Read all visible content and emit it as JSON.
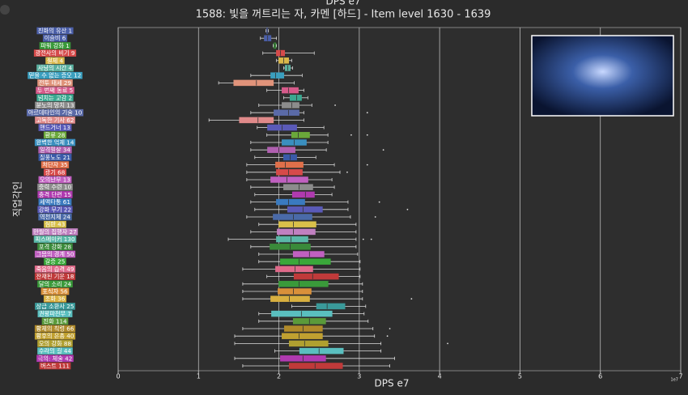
{
  "chart_data": {
    "type": "box",
    "top_text": "DPS e7",
    "title": "1588: 빛을 꺼트리는 자, 카멘 [하드] - Item level 1630 - 1639",
    "xlabel": "DPS e7",
    "ylabel": "직업각인",
    "offset_label": "1e7",
    "xlim": [
      0,
      7
    ],
    "xticks": [
      0,
      1,
      2,
      3,
      4,
      5,
      6,
      7
    ],
    "grid": true,
    "categories": [
      "진화의 유산 1",
      "이슬비 6",
      "파워 강화 1",
      "광전사의 비기 9",
      "절제 4",
      "사냥의 시간 4",
      "믿을 수 없는 증오 12",
      "전투 태세 29",
      "두 번째 동료 5",
      "넘치는 교감 2",
      "분노의 망치 13",
      "아르데타인의 기술 10",
      "고독한 기사 62",
      "핸드거너 13",
      "환류 28",
      "완벽한 억제 14",
      "일격필살 34",
      "질풍노도 21",
      "처단자 35",
      "광기 68",
      "오의난무 13",
      "중력 수련 10",
      "충격 단련 15",
      "세맥타통 61",
      "강화 무기 22",
      "역천지체 24",
      "심판 43",
      "만월의 집행자 27",
      "피스메이커 130",
      "포격 강화 28",
      "그믐의 경계 50",
      "갈증 25",
      "죽음의 습격 49",
      "잔재된 기운 18",
      "달의 소리 24",
      "포식자 56",
      "조화 36",
      "상급 소환사 25",
      "권왕파천무 7",
      "진화 114",
      "황제의 칙령 66",
      "황후의 은총 40",
      "오의 강화 88",
      "수라의 길 44",
      "극의: 체술 42",
      "버스트 111"
    ],
    "colors": [
      "#4b5fa8",
      "#4b5fa8",
      "#3a9a3a",
      "#d64a4a",
      "#d9b74a",
      "#5ab0a0",
      "#3a9fbf",
      "#e0937a",
      "#d65a8a",
      "#3aa890",
      "#8c8c8c",
      "#5a6aa8",
      "#e08a8a",
      "#5a5ab8",
      "#6aa83a",
      "#3a8fbf",
      "#b060b0",
      "#3a5aa8",
      "#e0704a",
      "#d64a4a",
      "#c060c0",
      "#8c8c8c",
      "#b03ab0",
      "#3a7abf",
      "#5a5ab8",
      "#4a6aa8",
      "#d9c04a",
      "#c080c0",
      "#5ab8a8",
      "#3a8a3a",
      "#c060c0",
      "#3aa83a",
      "#e06a8a",
      "#c03a3a",
      "#3a9a3a",
      "#d9903a",
      "#d9b040",
      "#3a9a9a",
      "#5abfbf",
      "#5a9a3a",
      "#b08a2a",
      "#c0a030",
      "#b0a030",
      "#5abfbf",
      "#b03ab0",
      "#c03a3a"
    ],
    "boxes": [
      {
        "low": 1.84,
        "q1": 1.85,
        "median": 1.855,
        "q3": 1.86,
        "high": 1.87,
        "outliers": []
      },
      {
        "low": 1.77,
        "q1": 1.82,
        "median": 1.86,
        "q3": 1.9,
        "high": 1.97,
        "outliers": []
      },
      {
        "low": 1.93,
        "q1": 1.94,
        "median": 1.95,
        "q3": 1.96,
        "high": 1.97,
        "outliers": []
      },
      {
        "low": 1.8,
        "q1": 1.97,
        "median": 2.02,
        "q3": 2.07,
        "high": 2.44,
        "outliers": []
      },
      {
        "low": 1.97,
        "q1": 2.0,
        "median": 2.06,
        "q3": 2.12,
        "high": 2.16,
        "outliers": []
      },
      {
        "low": 2.06,
        "q1": 2.08,
        "median": 2.11,
        "q3": 2.14,
        "high": 2.17,
        "outliers": []
      },
      {
        "low": 1.65,
        "q1": 1.9,
        "median": 1.96,
        "q3": 2.06,
        "high": 2.29,
        "outliers": []
      },
      {
        "low": 1.25,
        "q1": 1.44,
        "median": 1.72,
        "q3": 1.93,
        "high": 2.19,
        "outliers": []
      },
      {
        "low": 1.85,
        "q1": 2.04,
        "median": 2.12,
        "q3": 2.24,
        "high": 2.31,
        "outliers": []
      },
      {
        "low": 2.06,
        "q1": 2.14,
        "median": 2.22,
        "q3": 2.28,
        "high": 2.36,
        "outliers": []
      },
      {
        "low": 1.75,
        "q1": 2.04,
        "median": 2.16,
        "q3": 2.25,
        "high": 2.41,
        "outliers": [
          2.7
        ]
      },
      {
        "low": 1.65,
        "q1": 1.94,
        "median": 2.12,
        "q3": 2.25,
        "high": 2.31,
        "outliers": [
          3.1
        ]
      },
      {
        "low": 1.13,
        "q1": 1.51,
        "median": 1.74,
        "q3": 1.93,
        "high": 2.31,
        "outliers": []
      },
      {
        "low": 1.73,
        "q1": 1.86,
        "median": 2.04,
        "q3": 2.22,
        "high": 2.56,
        "outliers": []
      },
      {
        "low": 1.85,
        "q1": 2.16,
        "median": 2.24,
        "q3": 2.38,
        "high": 2.61,
        "outliers": [
          2.9,
          3.1
        ]
      },
      {
        "low": 1.65,
        "q1": 2.04,
        "median": 2.19,
        "q3": 2.34,
        "high": 2.61,
        "outliers": []
      },
      {
        "low": 1.65,
        "q1": 1.86,
        "median": 2.0,
        "q3": 2.2,
        "high": 2.59,
        "outliers": [
          3.3
        ]
      },
      {
        "low": 1.7,
        "q1": 2.06,
        "median": 2.14,
        "q3": 2.22,
        "high": 2.46,
        "outliers": []
      },
      {
        "low": 1.6,
        "q1": 1.96,
        "median": 2.08,
        "q3": 2.3,
        "high": 2.69,
        "outliers": [
          3.1
        ]
      },
      {
        "low": 1.6,
        "q1": 1.97,
        "median": 2.12,
        "q3": 2.29,
        "high": 2.76,
        "outliers": [
          2.85
        ]
      },
      {
        "low": 1.6,
        "q1": 1.9,
        "median": 2.1,
        "q3": 2.36,
        "high": 2.66,
        "outliers": []
      },
      {
        "low": 1.65,
        "q1": 2.06,
        "median": 2.25,
        "q3": 2.42,
        "high": 2.69,
        "outliers": []
      },
      {
        "low": 1.7,
        "q1": 2.17,
        "median": 2.33,
        "q3": 2.44,
        "high": 2.66,
        "outliers": []
      },
      {
        "low": 1.65,
        "q1": 1.97,
        "median": 2.12,
        "q3": 2.32,
        "high": 2.86,
        "outliers": [
          3.25
        ]
      },
      {
        "low": 1.7,
        "q1": 2.11,
        "median": 2.3,
        "q3": 2.54,
        "high": 2.86,
        "outliers": [
          3.6
        ]
      },
      {
        "low": 1.6,
        "q1": 1.93,
        "median": 2.18,
        "q3": 2.41,
        "high": 2.89,
        "outliers": [
          3.2
        ]
      },
      {
        "low": 1.75,
        "q1": 2.0,
        "median": 2.18,
        "q3": 2.46,
        "high": 2.96,
        "outliers": []
      },
      {
        "low": 1.65,
        "q1": 1.98,
        "median": 2.18,
        "q3": 2.45,
        "high": 2.96,
        "outliers": []
      },
      {
        "low": 1.37,
        "q1": 1.97,
        "median": 2.15,
        "q3": 2.36,
        "high": 2.96,
        "outliers": [
          3.05,
          3.15
        ]
      },
      {
        "low": 1.65,
        "q1": 1.89,
        "median": 2.14,
        "q3": 2.39,
        "high": 2.96,
        "outliers": []
      },
      {
        "low": 1.75,
        "q1": 2.18,
        "median": 2.38,
        "q3": 2.56,
        "high": 2.98,
        "outliers": []
      },
      {
        "low": 1.75,
        "q1": 2.02,
        "median": 2.25,
        "q3": 2.64,
        "high": 3.01,
        "outliers": []
      },
      {
        "low": 1.55,
        "q1": 1.96,
        "median": 2.2,
        "q3": 2.42,
        "high": 3.01,
        "outliers": []
      },
      {
        "low": 1.85,
        "q1": 2.19,
        "median": 2.42,
        "q3": 2.74,
        "high": 3.01,
        "outliers": []
      },
      {
        "low": 1.55,
        "q1": 2.0,
        "median": 2.25,
        "q3": 2.61,
        "high": 3.04,
        "outliers": []
      },
      {
        "low": 1.55,
        "q1": 1.99,
        "median": 2.18,
        "q3": 2.4,
        "high": 3.04,
        "outliers": []
      },
      {
        "low": 1.55,
        "q1": 1.9,
        "median": 2.13,
        "q3": 2.38,
        "high": 3.04,
        "outliers": [
          3.65
        ]
      },
      {
        "low": 2.16,
        "q1": 2.47,
        "median": 2.6,
        "q3": 2.82,
        "high": 3.08,
        "outliers": []
      },
      {
        "low": 1.75,
        "q1": 1.91,
        "median": 2.28,
        "q3": 2.66,
        "high": 3.06,
        "outliers": []
      },
      {
        "low": 1.75,
        "q1": 2.18,
        "median": 2.38,
        "q3": 2.58,
        "high": 3.11,
        "outliers": []
      },
      {
        "low": 1.55,
        "q1": 2.07,
        "median": 2.3,
        "q3": 2.54,
        "high": 3.17,
        "outliers": [
          3.38
        ]
      },
      {
        "low": 1.45,
        "q1": 2.04,
        "median": 2.25,
        "q3": 2.54,
        "high": 3.19,
        "outliers": [
          3.35
        ]
      },
      {
        "low": 1.45,
        "q1": 2.13,
        "median": 2.32,
        "q3": 2.61,
        "high": 3.27,
        "outliers": [
          4.1
        ]
      },
      {
        "low": 1.95,
        "q1": 2.26,
        "median": 2.5,
        "q3": 2.8,
        "high": 3.27,
        "outliers": []
      },
      {
        "low": 1.45,
        "q1": 2.02,
        "median": 2.3,
        "q3": 2.58,
        "high": 3.44,
        "outliers": []
      },
      {
        "low": 1.55,
        "q1": 2.13,
        "median": 2.45,
        "q3": 2.79,
        "high": 3.38,
        "outliers": []
      }
    ]
  }
}
